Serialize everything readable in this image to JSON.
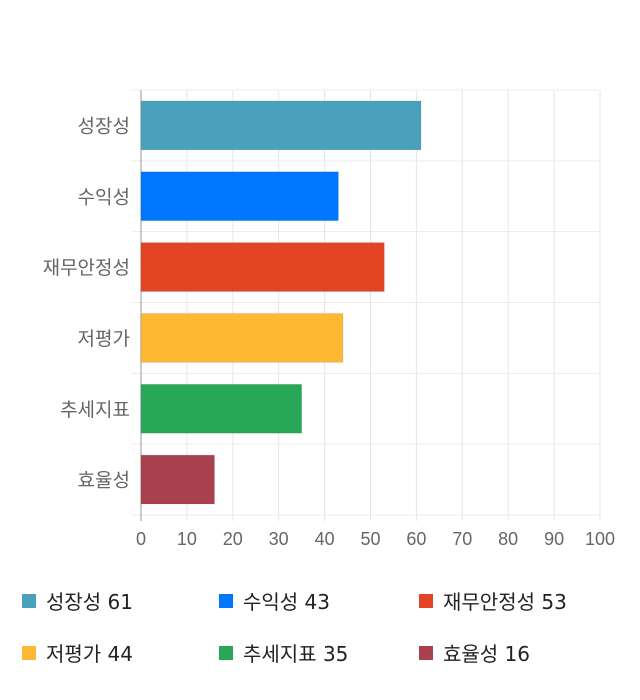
{
  "chart_data": {
    "type": "bar",
    "orientation": "horizontal",
    "categories": [
      "성장성",
      "수익성",
      "재무안정성",
      "저평가",
      "추세지표",
      "효율성"
    ],
    "values": [
      61,
      43,
      53,
      44,
      35,
      16
    ],
    "colors": [
      "#4aa1bb",
      "#0077ff",
      "#e44423",
      "#ffb833",
      "#28a857",
      "#a8404e"
    ],
    "xlim": [
      0,
      100
    ],
    "xticks": [
      0,
      10,
      20,
      30,
      40,
      50,
      60,
      70,
      80,
      90,
      100
    ],
    "grid": true,
    "legend_position": "bottom",
    "legend": [
      "성장성 61",
      "수익성 43",
      "재무안정성 53",
      "저평가 44",
      "추세지표 35",
      "효율성 16"
    ]
  }
}
